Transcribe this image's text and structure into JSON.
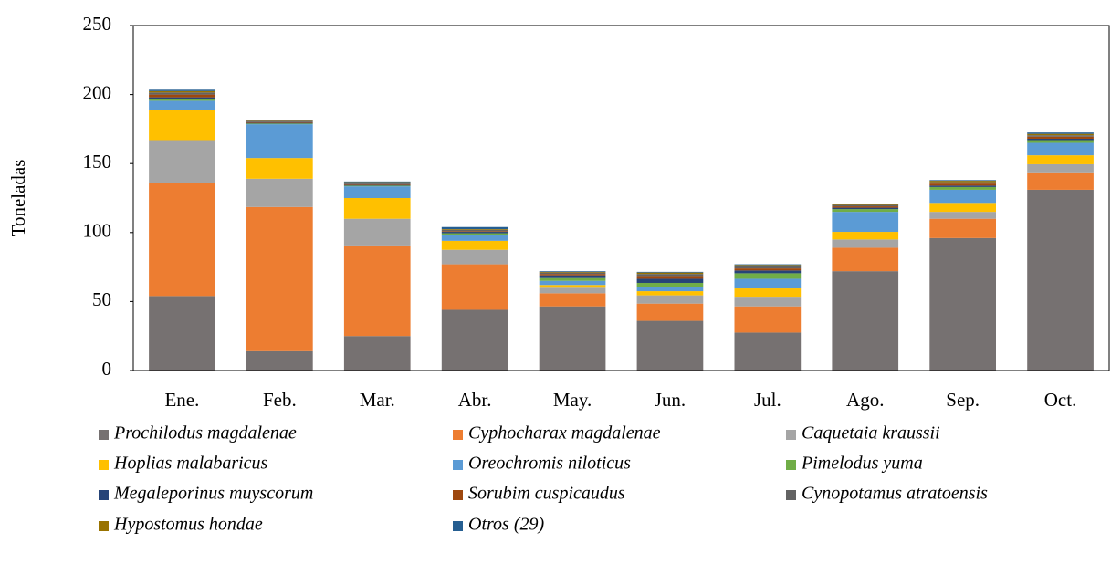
{
  "chart_data": {
    "type": "stacked_bar",
    "y_label": "Toneladas",
    "categories": [
      "Ene.",
      "Feb.",
      "Mar.",
      "Abr.",
      "May.",
      "Jun.",
      "Jul.",
      "Ago.",
      "Sep.",
      "Oct."
    ],
    "ylim": [
      0,
      250
    ],
    "yticks": [
      0,
      50,
      100,
      150,
      200,
      250
    ],
    "series": [
      {
        "name": "Prochilodus magdalenae",
        "color": "#767171",
        "values": [
          54,
          14,
          25,
          44,
          46.5,
          36,
          27.5,
          72,
          96,
          131
        ]
      },
      {
        "name": "Cyphocharax magdalenae",
        "color": "#ed7d31",
        "values": [
          82,
          104.5,
          65,
          33,
          9.5,
          12.5,
          19,
          17,
          14,
          12
        ]
      },
      {
        "name": "Caquetaia kraussii",
        "color": "#a5a5a5",
        "values": [
          31,
          20.5,
          20,
          10.5,
          4,
          6,
          7,
          6,
          5,
          6.5
        ]
      },
      {
        "name": "Hoplias malabaricus",
        "color": "#ffc000",
        "values": [
          22,
          15,
          15,
          6.5,
          2,
          3,
          6,
          5.5,
          6.5,
          6.5
        ]
      },
      {
        "name": "Oreochromis niloticus",
        "color": "#5b9bd5",
        "values": [
          6.5,
          24.5,
          8.5,
          4,
          3,
          3,
          7,
          14.5,
          9.5,
          9
        ]
      },
      {
        "name": "Pimelodus yuma",
        "color": "#70ad47",
        "values": [
          1.5,
          0.5,
          0.5,
          1.5,
          2,
          3,
          4,
          2,
          2,
          2
        ]
      },
      {
        "name": "Megaleporinus muyscorum",
        "color": "#264478",
        "values": [
          1,
          0.5,
          0.5,
          1,
          2,
          3,
          2,
          1,
          1,
          1
        ]
      },
      {
        "name": "Sorubim cuspicaudus",
        "color": "#9e480e",
        "values": [
          2,
          0.5,
          0.5,
          0.5,
          1,
          2,
          1.5,
          1,
          1.5,
          1.5
        ]
      },
      {
        "name": "Cynopotamus atratoensis",
        "color": "#636363",
        "values": [
          1.5,
          1,
          1,
          1,
          1,
          1.5,
          1.5,
          1,
          1,
          1
        ]
      },
      {
        "name": "Hypostomus hondae",
        "color": "#997300",
        "values": [
          1,
          0.3,
          0.5,
          0.5,
          0.5,
          1,
          1,
          0.5,
          1,
          1
        ]
      },
      {
        "name": "Otros (29)",
        "color": "#255e91",
        "values": [
          1,
          0.2,
          0.5,
          1.5,
          0.5,
          0.5,
          0.5,
          0.5,
          0.5,
          1
        ]
      }
    ]
  }
}
